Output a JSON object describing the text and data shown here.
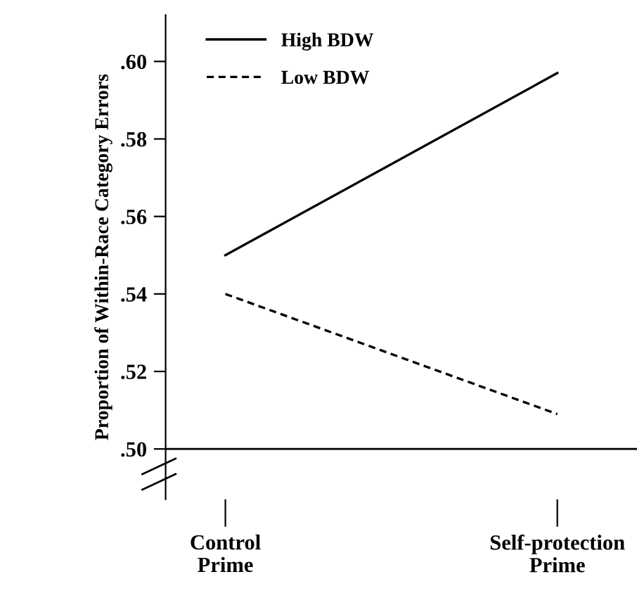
{
  "chart_data": {
    "type": "line",
    "ylabel": "Proportion of Within-Race Category Errors",
    "categories": [
      "Control\nPrime",
      "Self-protection\nPrime"
    ],
    "series": [
      {
        "name": "High BDW",
        "color": "#000000",
        "values": [
          0.55,
          0.597
        ],
        "line_style": "solid"
      },
      {
        "name": "Low BDW",
        "color": "#000000",
        "values": [
          0.54,
          0.509
        ],
        "line_style": "dashed"
      }
    ],
    "ylim": [
      0.487,
      0.612
    ],
    "yticks": [
      {
        "value": 0.5,
        "label": ".50"
      },
      {
        "value": 0.52,
        "label": ".52"
      },
      {
        "value": 0.54,
        "label": ".54"
      },
      {
        "value": 0.56,
        "label": ".56"
      },
      {
        "value": 0.58,
        "label": ".58"
      },
      {
        "value": 0.6,
        "label": ".60"
      }
    ],
    "ref_lines": [
      {
        "axis": "y",
        "value": 0.5,
        "color": "#000000"
      }
    ],
    "grid": false,
    "legend": "top left",
    "marker": "none"
  }
}
